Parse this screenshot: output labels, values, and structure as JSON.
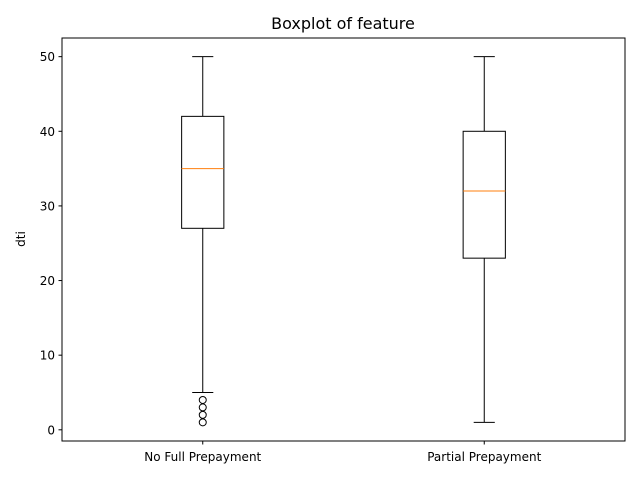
{
  "chart_data": {
    "type": "box",
    "title": "Boxplot of feature",
    "xlabel": "",
    "ylabel": "dti",
    "ylim": [
      -1.5,
      52.5
    ],
    "y_ticks": [
      0,
      10,
      20,
      30,
      40,
      50
    ],
    "y_tick_labels": [
      "0",
      "10",
      "20",
      "30",
      "40",
      "50"
    ],
    "categories": [
      "No Full Prepayment",
      "Partial Prepayment"
    ],
    "boxes": [
      {
        "category": "No Full Prepayment",
        "whisker_low": 5,
        "q1": 27,
        "median": 35,
        "q3": 42,
        "whisker_high": 50,
        "outliers": [
          1,
          2,
          3,
          4
        ]
      },
      {
        "category": "Partial Prepayment",
        "whisker_low": 1,
        "q1": 23,
        "median": 32,
        "q3": 40,
        "whisker_high": 50,
        "outliers": []
      }
    ],
    "grid": false,
    "colors": {
      "box": "#000000",
      "median": "#ff7f0e",
      "outlier": "#000000"
    }
  }
}
